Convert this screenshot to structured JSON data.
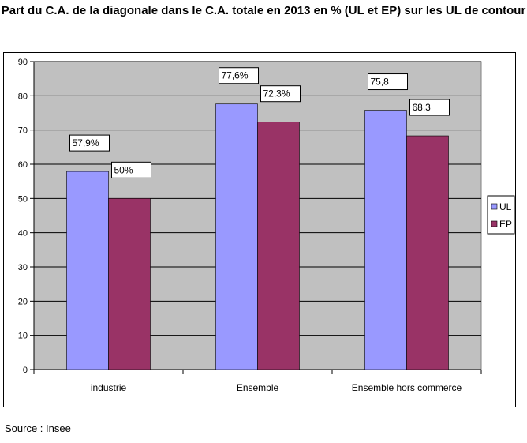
{
  "chart_data": {
    "type": "bar",
    "title": "Part du C.A. de la diagonale dans le C.A. totale en 2013 en % (UL et EP) sur les UL de contour",
    "categories": [
      "industrie",
      "Ensemble",
      "Ensemble hors commerce"
    ],
    "series": [
      {
        "name": "UL",
        "values": [
          57.9,
          77.6,
          75.8
        ],
        "labels": [
          "57,9%",
          "77,6%",
          "75,8"
        ],
        "color": "#9999ff"
      },
      {
        "name": "EP",
        "values": [
          50,
          72.3,
          68.3
        ],
        "labels": [
          "50%",
          "72,3%",
          "68,3"
        ],
        "color": "#993366"
      }
    ],
    "ylim": [
      0,
      90
    ],
    "yticks": [
      0,
      10,
      20,
      30,
      40,
      50,
      60,
      70,
      80,
      90
    ],
    "grid": true,
    "plot_background": "#c0c0c0",
    "legend_position": "right"
  },
  "source": "Source : Insee"
}
